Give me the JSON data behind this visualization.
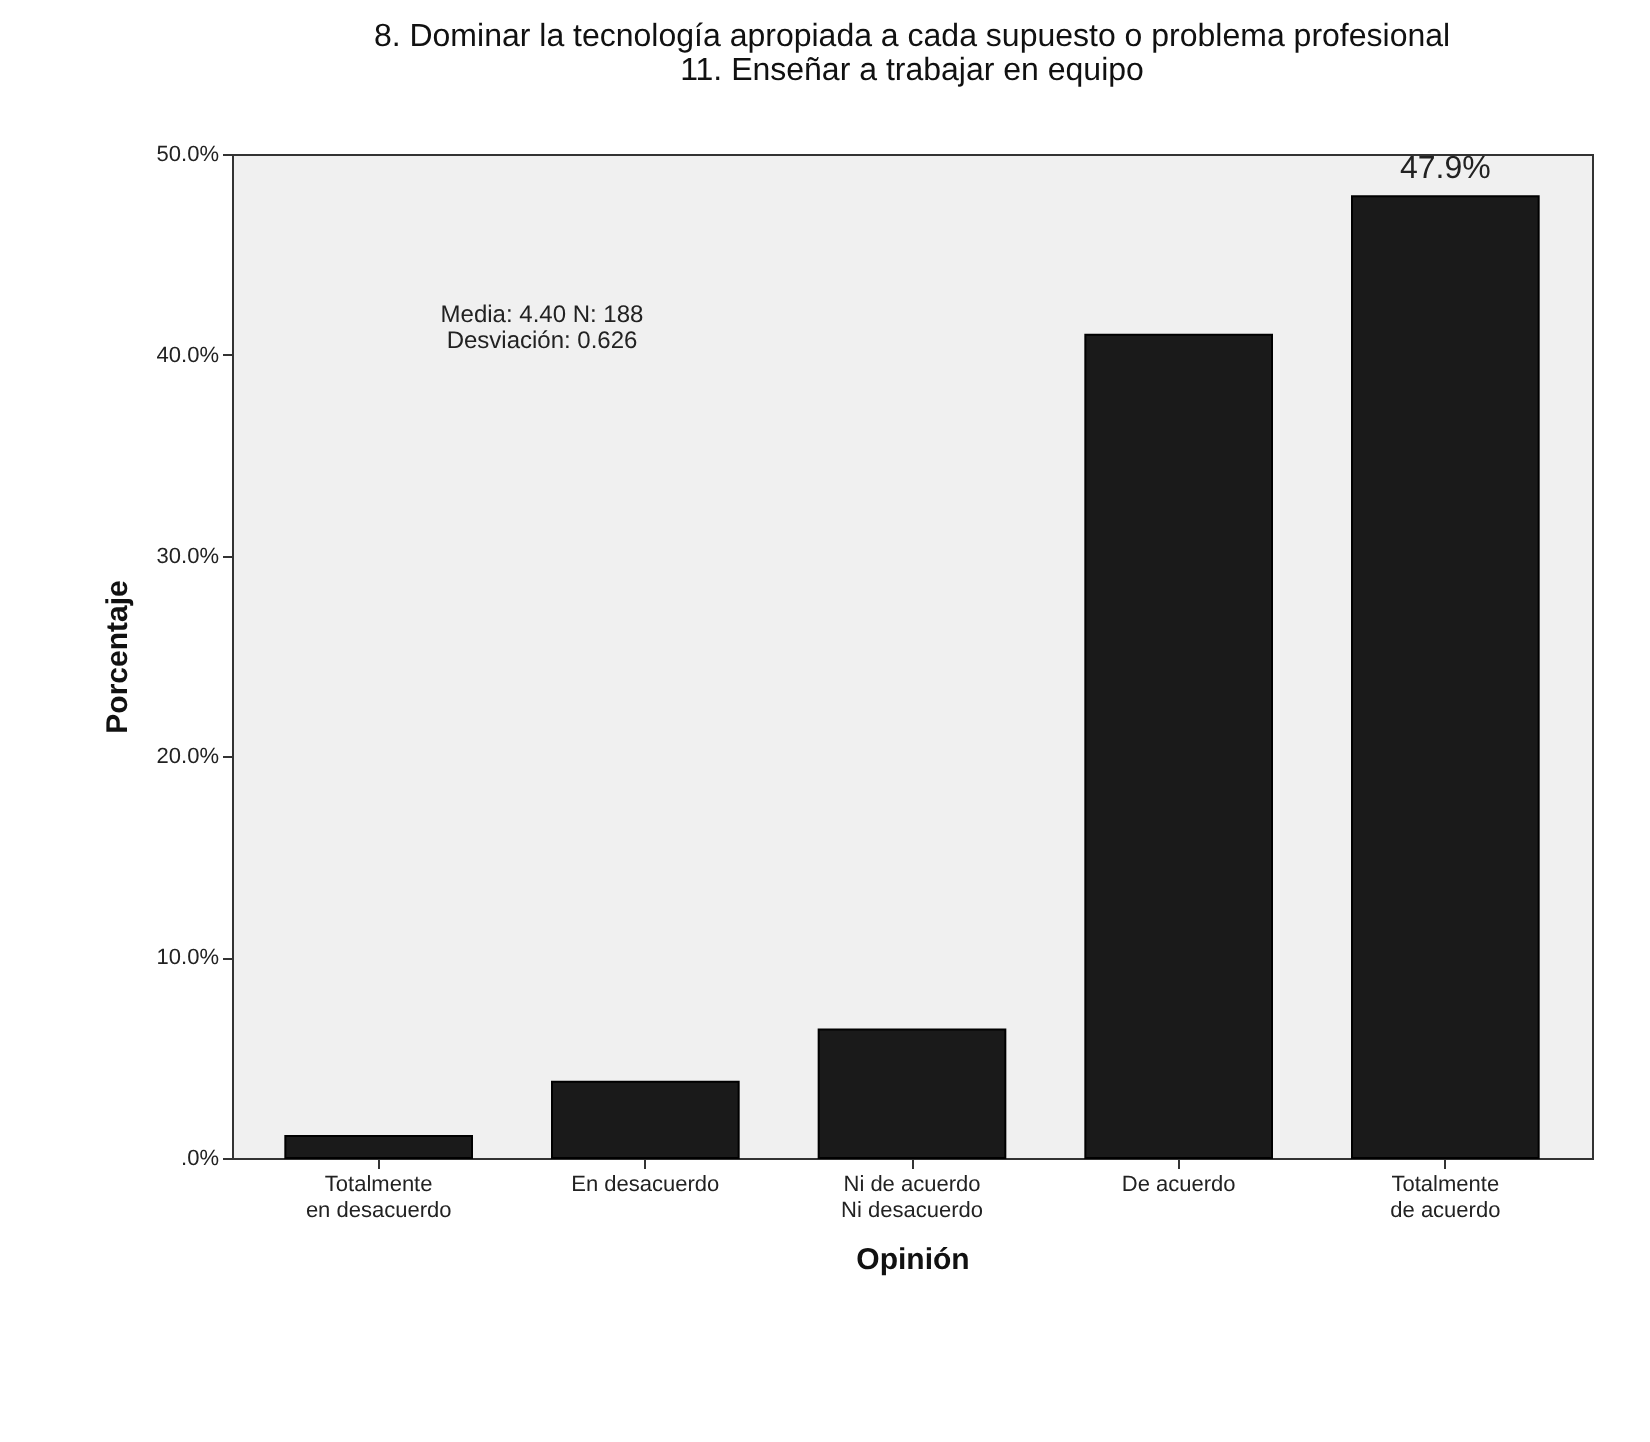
{
  "chart_data": {
    "type": "bar",
    "title": "8. Dominar la tecnología apropiada a cada supuesto o problema profesional\n11. Enseñar a trabajar en equipo",
    "xlabel": "Opinión",
    "ylabel": "Porcentaje",
    "categories": [
      "Totalmente en desacuerdo",
      "En desacuerdo",
      "Ni de acuerdo Ni desacuerdo",
      "De acuerdo",
      "Totalmente de acuerdo"
    ],
    "values": [
      1.1,
      3.8,
      6.4,
      41.0,
      47.9
    ],
    "value_labels": [
      null,
      null,
      null,
      null,
      "47.9%"
    ],
    "color": "#1a1a1a",
    "ylim": [
      0,
      50
    ],
    "yticks": [
      {
        "value": 0,
        "label": ".0%"
      },
      {
        "value": 10,
        "label": "10.0%"
      },
      {
        "value": 20,
        "label": "20.0%"
      },
      {
        "value": 30,
        "label": "30.0%"
      },
      {
        "value": 40,
        "label": "40.0%"
      },
      {
        "value": 50,
        "label": "50.0%"
      }
    ],
    "annotations": [
      "Media: 4.40  N: 188\nDesviación: 0.626"
    ],
    "grid": false
  }
}
